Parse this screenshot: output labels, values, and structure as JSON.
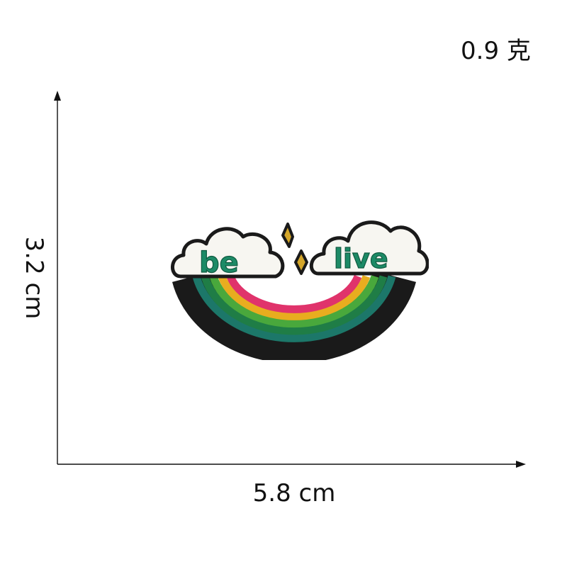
{
  "product": {
    "weight": "0.9 克",
    "height": "3.2 cm",
    "width": "5.8 cm"
  },
  "patch": {
    "left_cloud_text": "be",
    "right_cloud_text": "live",
    "colors": {
      "outline": "#1a1a1a",
      "cloud": "#f7f6f1",
      "text": "#1d8a66",
      "pink": "#e0336b",
      "yellow": "#e8ad1f",
      "light_green": "#49a83c",
      "dark_green": "#1f7d46",
      "teal": "#1c7769",
      "gold": "#d4a62a"
    }
  }
}
